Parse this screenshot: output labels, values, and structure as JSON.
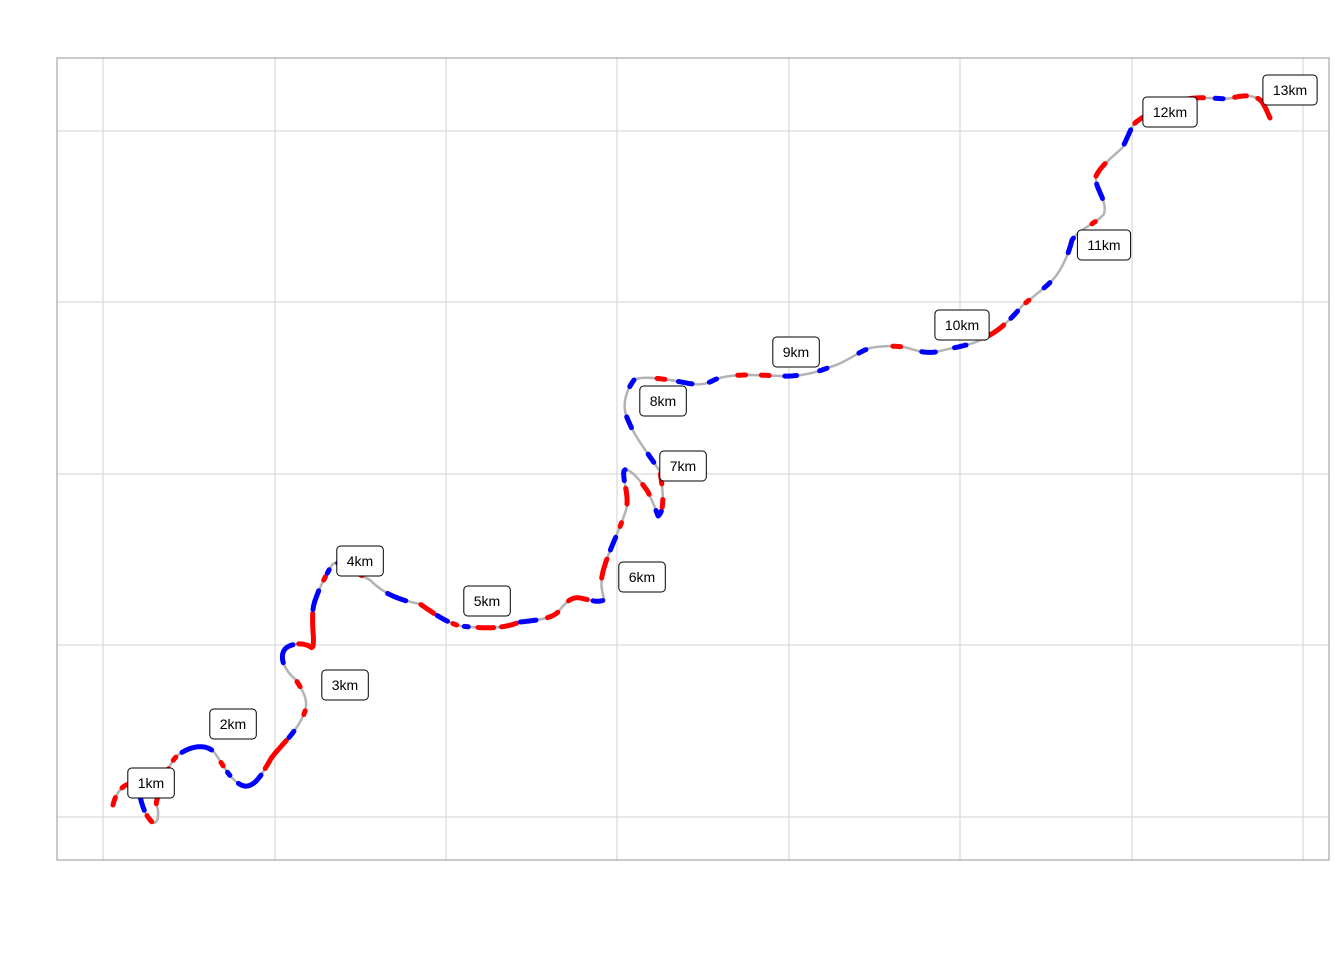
{
  "map": {
    "route_color": "#b3b3b3",
    "fast_color": "#ff0000",
    "slow_color": "#0000ff",
    "grid_color": "#d9d9d9",
    "border_color": "#a6a6a6",
    "km_labels": [
      "1km",
      "2km",
      "3km",
      "4km",
      "5km",
      "6km",
      "7km",
      "8km",
      "9km",
      "10km",
      "11km",
      "12km",
      "13km"
    ]
  }
}
